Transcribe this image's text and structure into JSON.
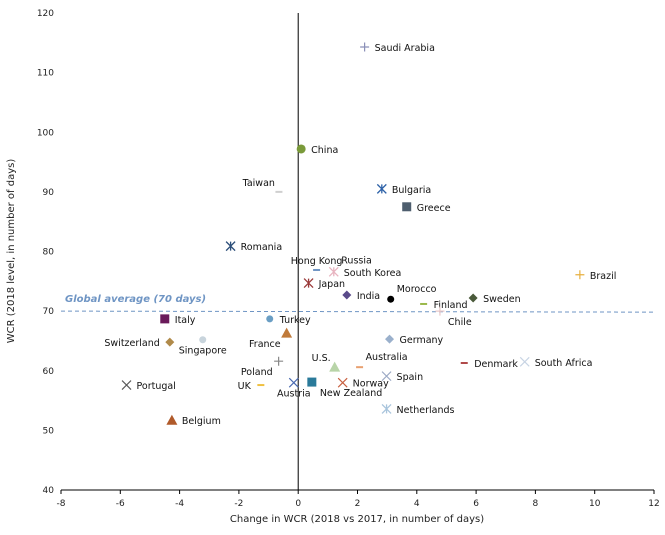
{
  "chart_data": {
    "type": "scatter",
    "xlabel": "Change in WCR (2018 vs 2017, in number of days)",
    "ylabel": "WCR (2018 level, in number of days)",
    "xlim": [
      -8,
      12
    ],
    "ylim": [
      40,
      120
    ],
    "xticks": [
      -8,
      -6,
      -4,
      -2,
      0,
      2,
      4,
      6,
      8,
      10,
      12
    ],
    "yticks": [
      40,
      50,
      60,
      70,
      80,
      90,
      100,
      110,
      120
    ],
    "grid": false,
    "reference_line": {
      "label": "Global average (70 days)",
      "y": 70,
      "color": "#6f95c4"
    },
    "points": [
      {
        "name": "Saudi Arabia",
        "x": 2.24,
        "y": 114.3,
        "marker": "plus",
        "color": "#8a8fb8",
        "label_pos": "right"
      },
      {
        "name": "China",
        "x": 0.1,
        "y": 97.2,
        "marker": "circle",
        "color": "#7a9a3a",
        "label_pos": "right"
      },
      {
        "name": "Taiwan",
        "x": -0.65,
        "y": 90.0,
        "marker": "dash",
        "color": "#cfcfcf",
        "label_pos": "above-left"
      },
      {
        "name": "Bulgaria",
        "x": 2.82,
        "y": 90.5,
        "marker": "star",
        "color": "#2e62a8",
        "label_pos": "right"
      },
      {
        "name": "Greece",
        "x": 3.66,
        "y": 87.5,
        "marker": "square",
        "color": "#4e5e6e",
        "label_pos": "right"
      },
      {
        "name": "Romania",
        "x": -2.28,
        "y": 80.9,
        "marker": "star",
        "color": "#2d4f7a",
        "label_pos": "right"
      },
      {
        "name": "Hong Kong",
        "x": 0.62,
        "y": 76.9,
        "marker": "dash",
        "color": "#6f95c4",
        "label_pos": "above"
      },
      {
        "name": "Russia",
        "x": 1.25,
        "y": 76.8,
        "marker": "none",
        "color": "#e8b4c0",
        "label_pos": "above-right"
      },
      {
        "name": "South Korea",
        "x": 1.2,
        "y": 76.6,
        "marker": "star",
        "color": "#e8b4c0",
        "label_pos": "right"
      },
      {
        "name": "Japan",
        "x": 0.35,
        "y": 74.7,
        "marker": "star",
        "color": "#9a3a3a",
        "label_pos": "right"
      },
      {
        "name": "India",
        "x": 1.64,
        "y": 72.7,
        "marker": "diamond",
        "color": "#5a4a8a",
        "label_pos": "right"
      },
      {
        "name": "Morocco",
        "x": 3.12,
        "y": 72.0,
        "marker": "circle",
        "color": "#000000",
        "label_pos": "above-right"
      },
      {
        "name": "Finland",
        "x": 4.23,
        "y": 71.2,
        "marker": "dash",
        "color": "#9ab84a",
        "label_pos": "right"
      },
      {
        "name": "Sweden",
        "x": 5.9,
        "y": 72.2,
        "marker": "diamond",
        "color": "#4a5a3a",
        "label_pos": "right"
      },
      {
        "name": "Chile",
        "x": 4.78,
        "y": 70.0,
        "marker": "plus",
        "color": "#e8c8c8",
        "label_pos": "below-right"
      },
      {
        "name": "Brazil",
        "x": 9.5,
        "y": 76.1,
        "marker": "plus",
        "color": "#e8b040",
        "label_pos": "right"
      },
      {
        "name": "Italy",
        "x": -4.5,
        "y": 68.7,
        "marker": "square",
        "color": "#6a1a5a",
        "label_pos": "right"
      },
      {
        "name": "Turkey",
        "x": -0.96,
        "y": 68.7,
        "marker": "circle",
        "color": "#6a9ec4",
        "label_pos": "right"
      },
      {
        "name": "France",
        "x": -0.39,
        "y": 66.3,
        "marker": "triangle",
        "color": "#c07a3a",
        "label_pos": "below-left"
      },
      {
        "name": "Switzerland",
        "x": -4.33,
        "y": 64.8,
        "marker": "diamond",
        "color": "#b08a4a",
        "label_pos": "left"
      },
      {
        "name": "Singapore",
        "x": -3.22,
        "y": 65.2,
        "marker": "circle",
        "color": "#c8d4dc",
        "label_pos": "below"
      },
      {
        "name": "Germany",
        "x": 3.08,
        "y": 65.3,
        "marker": "diamond",
        "color": "#9ab0cc",
        "label_pos": "right"
      },
      {
        "name": "Poland",
        "x": -0.66,
        "y": 61.6,
        "marker": "plus",
        "color": "#888888",
        "label_pos": "below-left"
      },
      {
        "name": "U.S.",
        "x": 1.23,
        "y": 60.6,
        "marker": "triangle",
        "color": "#b8d4a8",
        "label_pos": "above-left"
      },
      {
        "name": "Australia",
        "x": 2.07,
        "y": 60.6,
        "marker": "dash",
        "color": "#e8a070",
        "label_pos": "above-right"
      },
      {
        "name": "Denmark",
        "x": 5.6,
        "y": 61.3,
        "marker": "dash",
        "color": "#b04a4a",
        "label_pos": "right"
      },
      {
        "name": "South Africa",
        "x": 7.64,
        "y": 61.5,
        "marker": "cross",
        "color": "#c8d4e4",
        "label_pos": "right"
      },
      {
        "name": "Spain",
        "x": 2.98,
        "y": 59.1,
        "marker": "cross",
        "color": "#9aa8c4",
        "label_pos": "right"
      },
      {
        "name": "UK",
        "x": -1.26,
        "y": 57.6,
        "marker": "dash",
        "color": "#f0c040",
        "label_pos": "left"
      },
      {
        "name": "Austria",
        "x": -0.15,
        "y": 58.0,
        "marker": "cross",
        "color": "#4a6ab0",
        "label_pos": "below"
      },
      {
        "name": "New Zealand",
        "x": 0.46,
        "y": 58.1,
        "marker": "square",
        "color": "#2a7a9a",
        "label_pos": "below-right"
      },
      {
        "name": "Norway",
        "x": 1.5,
        "y": 58.0,
        "marker": "cross",
        "color": "#c86040",
        "label_pos": "right"
      },
      {
        "name": "Portugal",
        "x": -5.79,
        "y": 57.6,
        "marker": "cross",
        "color": "#5a5a5a",
        "label_pos": "right"
      },
      {
        "name": "Netherlands",
        "x": 2.98,
        "y": 53.6,
        "marker": "star",
        "color": "#a8c4dc",
        "label_pos": "right"
      },
      {
        "name": "Belgium",
        "x": -4.26,
        "y": 51.7,
        "marker": "triangle",
        "color": "#b05a2a",
        "label_pos": "right"
      }
    ]
  }
}
